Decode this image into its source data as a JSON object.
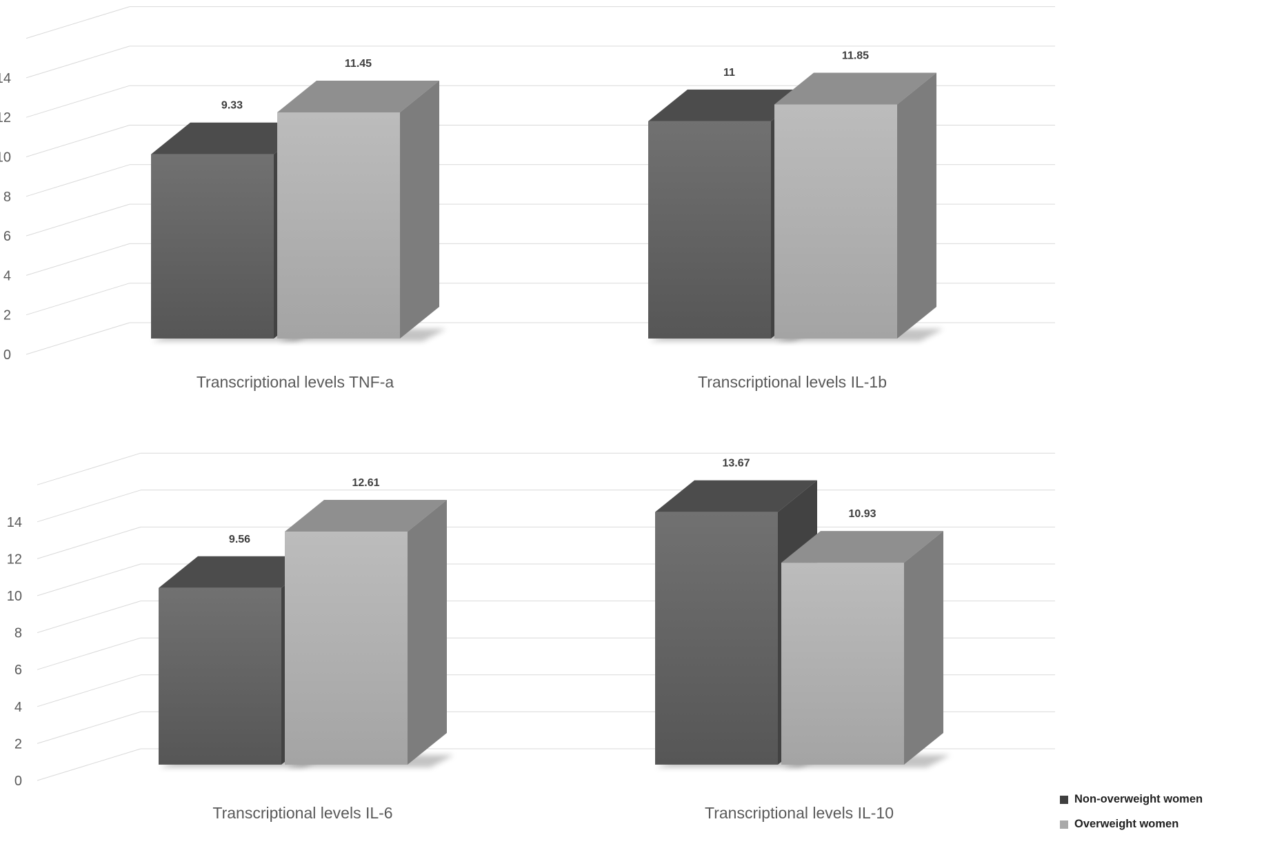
{
  "chart_data": {
    "type": "bar",
    "projection": "3d",
    "grid": true,
    "ylim": [
      0,
      16
    ],
    "yticks": [
      0,
      2,
      4,
      6,
      8,
      10,
      12,
      14
    ],
    "legend_position": "bottom-right",
    "charts": [
      {
        "categories": [
          "Transcriptional levels TNF-a",
          "Transcriptional levels IL-1b"
        ],
        "series": [
          {
            "name": "Non-overweight women",
            "values": [
              9.33,
              11
            ]
          },
          {
            "name": "Overweight women",
            "values": [
              11.45,
              11.85
            ]
          }
        ],
        "value_labels": [
          [
            "9.33",
            "11"
          ],
          [
            "11.45",
            "11.85"
          ]
        ]
      },
      {
        "categories": [
          "Transcriptional levels IL-6",
          "Transcriptional levels IL-10"
        ],
        "series": [
          {
            "name": "Non-overweight women",
            "values": [
              9.56,
              13.67
            ]
          },
          {
            "name": "Overweight women",
            "values": [
              12.61,
              10.93
            ]
          }
        ],
        "value_labels": [
          [
            "9.56",
            "13.67"
          ],
          [
            "12.61",
            "10.93"
          ]
        ]
      }
    ]
  },
  "legend": {
    "items": [
      {
        "label": "Non-overweight women"
      },
      {
        "label": "Overweight women"
      }
    ]
  },
  "colors": {
    "background": "#ffffff",
    "grid": "#d9d9d9",
    "tick_label": "#595959",
    "category_label": "#595959",
    "value_label": "#3d3d3d",
    "legend_text": "#1f1f1f",
    "series": [
      {
        "name": "Non-overweight women",
        "front_top": "#717171",
        "front_bottom": "#565656",
        "top": "#4c4c4c",
        "side": "#424242",
        "legend_swatch": "#3f3f3f"
      },
      {
        "name": "Overweight women",
        "front_top": "#bcbcbc",
        "front_bottom": "#a4a4a4",
        "top": "#8f8f8f",
        "side": "#7d7d7d",
        "legend_swatch": "#a9a9a9"
      }
    ]
  }
}
